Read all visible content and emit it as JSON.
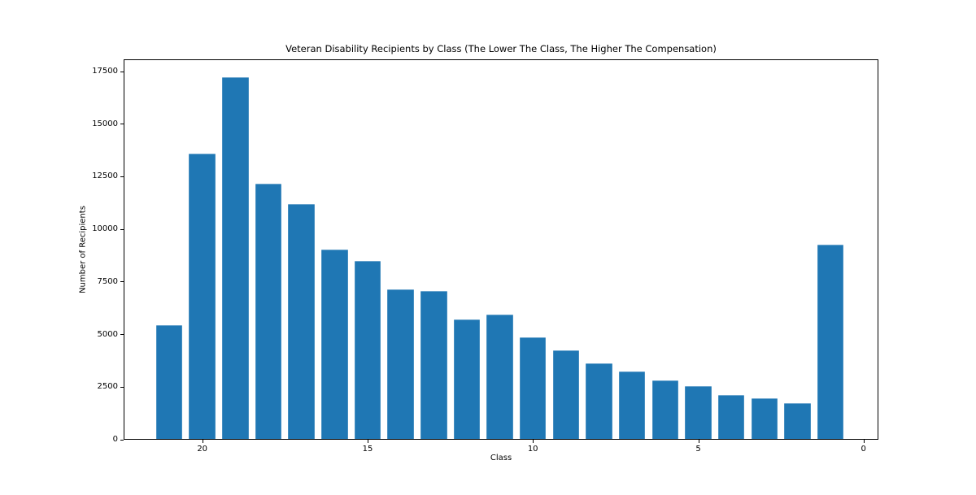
{
  "chart_data": {
    "type": "bar",
    "title": "Veteran Disability Recipients by Class (The Lower The Class, The Higher The Compensation)",
    "xlabel": "Class",
    "ylabel": "Number of Recipients",
    "categories": [
      21,
      20,
      19,
      18,
      17,
      16,
      15,
      14,
      13,
      12,
      11,
      10,
      9,
      8,
      7,
      6,
      5,
      4,
      3,
      2,
      1
    ],
    "values": [
      5400,
      13550,
      17200,
      12150,
      11150,
      9000,
      8450,
      7100,
      7050,
      5700,
      5900,
      4850,
      4200,
      3600,
      3200,
      2800,
      2500,
      2100,
      1950,
      1700,
      9250
    ],
    "x_ticks": [
      20,
      15,
      10,
      5,
      0
    ],
    "y_ticks": [
      0,
      2500,
      5000,
      7500,
      10000,
      12500,
      15000,
      17500
    ],
    "x_axis_inverted": true,
    "xlim": [
      22.4,
      -0.45
    ],
    "ylim": [
      0,
      18080
    ],
    "grid": false,
    "legend": null,
    "bar_color": "#1f77b4",
    "background_color": "#ffffff"
  }
}
